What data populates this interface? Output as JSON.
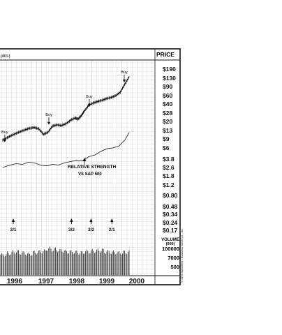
{
  "chart_data": {
    "type": "line",
    "title": "PRICE",
    "subtitle_fragment": "plits)",
    "price_axis": {
      "scale": "log",
      "ticks": [
        "$190",
        "$130",
        "$90",
        "$60",
        "$40",
        "$28",
        "$20",
        "$13",
        "$9",
        "$6",
        "$3.8",
        "$2.6",
        "$1.8",
        "$1.2",
        "$0.80",
        "$0.48",
        "$0.34",
        "$0.24",
        "$0.17"
      ],
      "values": [
        190,
        130,
        90,
        60,
        40,
        28,
        20,
        13,
        9,
        6,
        3.8,
        2.6,
        1.8,
        1.2,
        0.8,
        0.48,
        0.34,
        0.24,
        0.17
      ]
    },
    "volume_axis": {
      "label_line1": "VOLUME",
      "label_line2": "(000)",
      "ticks": [
        "100000",
        "7000",
        "500"
      ]
    },
    "x_axis": {
      "tick_labels": [
        "1996",
        "1997",
        "1998",
        "1999",
        "2000"
      ]
    },
    "price_series": {
      "x": [
        1995.55,
        1995.7,
        1995.85,
        1996.0,
        1996.15,
        1996.3,
        1996.45,
        1996.6,
        1996.75,
        1996.9,
        1997.05,
        1997.2,
        1997.35,
        1997.5,
        1997.65,
        1997.8,
        1997.95,
        1998.05,
        1998.15,
        1998.25,
        1998.4,
        1998.55,
        1998.7,
        1998.85,
        1999.0,
        1999.15,
        1999.3,
        1999.45,
        1999.6,
        1999.75
      ],
      "y": [
        8.5,
        9.5,
        10.5,
        11.5,
        12.5,
        13.5,
        14.5,
        15,
        14,
        11,
        12,
        16,
        17,
        16.5,
        18,
        21,
        23,
        22,
        25,
        30,
        38,
        42,
        45,
        48,
        52,
        55,
        60,
        70,
        100,
        140
      ]
    },
    "relative_strength": {
      "label_line1": "RELATIVE STRENGTH",
      "label_line2": "VS S&P 500",
      "x": [
        1995.55,
        1995.8,
        1996.0,
        1996.2,
        1996.4,
        1996.6,
        1996.8,
        1997.0,
        1997.2,
        1997.4,
        1997.6,
        1997.8,
        1998.0,
        1998.2,
        1998.4,
        1998.6,
        1998.8,
        1999.0,
        1999.2,
        1999.4,
        1999.6,
        1999.75
      ],
      "y": [
        2.6,
        2.9,
        3.1,
        3.0,
        3.3,
        3.2,
        2.9,
        2.8,
        3.0,
        2.9,
        3.2,
        3.4,
        3.6,
        3.5,
        4.2,
        4.5,
        5.2,
        5.8,
        6.0,
        6.5,
        8.5,
        12
      ]
    },
    "annotations": [
      {
        "text": "Buy",
        "x": 1995.62,
        "y": 7.5
      },
      {
        "text": "Buy",
        "x": 1997.08,
        "y": 16.5
      },
      {
        "text": "Buy",
        "x": 1998.42,
        "y": 35
      },
      {
        "text": "Buy",
        "x": 1999.58,
        "y": 105
      }
    ],
    "splits": [
      {
        "label": "2/1",
        "x": 1995.9
      },
      {
        "label": "3/2",
        "x": 1997.83
      },
      {
        "label": "3/2",
        "x": 1998.48
      },
      {
        "label": "2/1",
        "x": 1999.17
      }
    ],
    "volume": {
      "values_by_quarter": [
        70000,
        75000,
        80000,
        76000,
        72000,
        78000,
        82000,
        90000,
        88000,
        84000,
        80000,
        79000,
        77000,
        81000,
        83000,
        85000,
        80000,
        78000,
        76000,
        79000
      ]
    },
    "copyright": "© 1999 Mansfield • Business Stock Co., Inc."
  }
}
